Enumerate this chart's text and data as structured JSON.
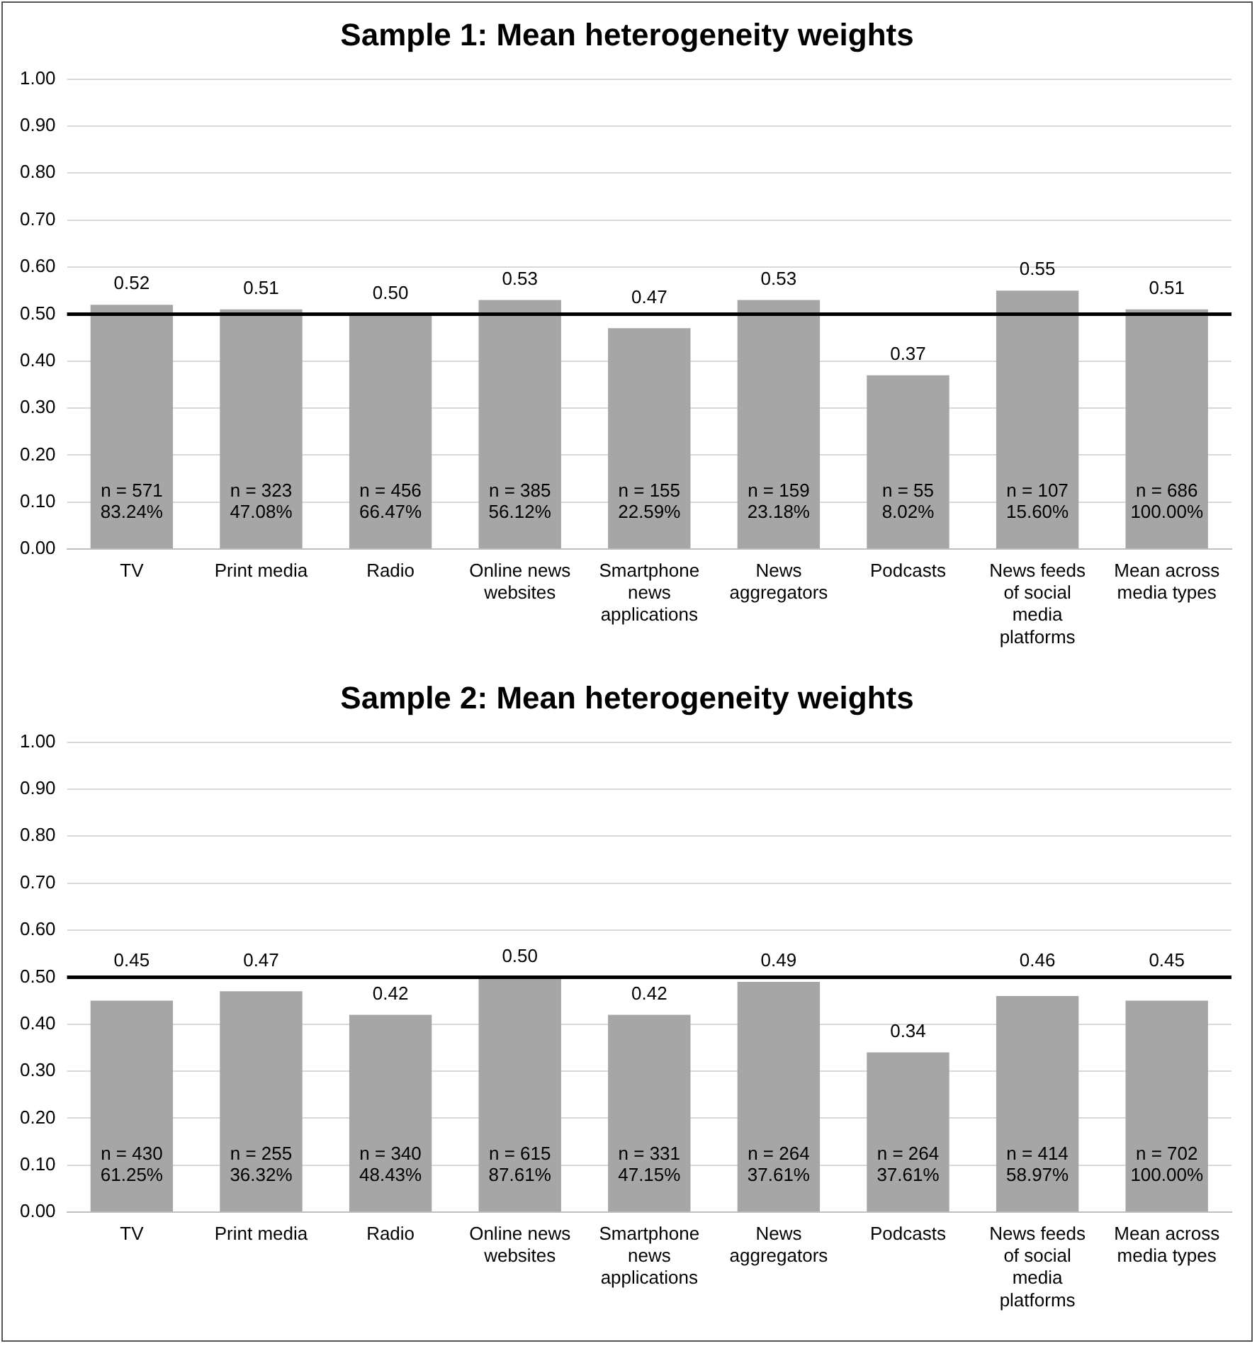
{
  "chart_data": [
    {
      "type": "bar",
      "title": "Sample 1: Mean heterogeneity weights",
      "categories": [
        "TV",
        "Print media",
        "Radio",
        "Online news websites",
        "Smartphone news applications",
        "News aggregators",
        "Podcasts",
        "News feeds of social media platforms",
        "Mean across media types"
      ],
      "values": [
        0.52,
        0.51,
        0.5,
        0.53,
        0.47,
        0.53,
        0.37,
        0.55,
        0.51
      ],
      "color": "#a6a6a6",
      "value_labels": [
        "0.52",
        "0.51",
        "0.50",
        "0.53",
        "0.47",
        "0.53",
        "0.37",
        "0.55",
        "0.51"
      ],
      "ylim": [
        0,
        1
      ],
      "yticks": [
        {
          "value": 0,
          "label": "0.00"
        },
        {
          "value": 0.1,
          "label": "0.10"
        },
        {
          "value": 0.2,
          "label": "0.20"
        },
        {
          "value": 0.3,
          "label": "0.30"
        },
        {
          "value": 0.4,
          "label": "0.40"
        },
        {
          "value": 0.5,
          "label": "0.50"
        },
        {
          "value": 0.6,
          "label": "0.60"
        },
        {
          "value": 0.7,
          "label": "0.70"
        },
        {
          "value": 0.8,
          "label": "0.80"
        },
        {
          "value": 0.9,
          "label": "0.90"
        },
        {
          "value": 1,
          "label": "1.00"
        }
      ],
      "grid": "y",
      "legend": false,
      "ref_lines": [
        {
          "axis": "y",
          "value": 0.5,
          "color": "#000000"
        }
      ],
      "annotations": [
        "n = 571\n83.24%",
        "n = 323\n47.08%",
        "n = 456\n66.47%",
        "n = 385\n56.12%",
        "n = 155\n22.59%",
        "n = 159\n23.18%",
        "n = 55\n8.02%",
        "n = 107\n15.60%",
        "n = 686\n100.00%"
      ]
    },
    {
      "type": "bar",
      "title": "Sample 2: Mean heterogeneity weights",
      "categories": [
        "TV",
        "Print media",
        "Radio",
        "Online news websites",
        "Smartphone news applications",
        "News aggregators",
        "Podcasts",
        "News feeds of social media platforms",
        "Mean across media types"
      ],
      "values": [
        0.45,
        0.47,
        0.42,
        0.5,
        0.42,
        0.49,
        0.34,
        0.46,
        0.45
      ],
      "color": "#a6a6a6",
      "value_labels": [
        "0.45",
        "0.47",
        "0.42",
        "0.50",
        "0.42",
        "0.49",
        "0.34",
        "0.46",
        "0.45"
      ],
      "ylim": [
        0,
        1
      ],
      "yticks": [
        {
          "value": 0,
          "label": "0.00"
        },
        {
          "value": 0.1,
          "label": "0.10"
        },
        {
          "value": 0.2,
          "label": "0.20"
        },
        {
          "value": 0.3,
          "label": "0.30"
        },
        {
          "value": 0.4,
          "label": "0.40"
        },
        {
          "value": 0.5,
          "label": "0.50"
        },
        {
          "value": 0.6,
          "label": "0.60"
        },
        {
          "value": 0.7,
          "label": "0.70"
        },
        {
          "value": 0.8,
          "label": "0.80"
        },
        {
          "value": 0.9,
          "label": "0.90"
        },
        {
          "value": 1,
          "label": "1.00"
        }
      ],
      "grid": "y",
      "legend": false,
      "ref_lines": [
        {
          "axis": "y",
          "value": 0.5,
          "color": "#000000"
        }
      ],
      "annotations": [
        "n = 430\n61.25%",
        "n = 255\n36.32%",
        "n = 340\n48.43%",
        "n = 615\n87.61%",
        "n = 331\n47.15%",
        "n = 264\n37.61%",
        "n = 264\n37.61%",
        "n = 414\n58.97%",
        "n = 702\n100.00%"
      ]
    }
  ]
}
